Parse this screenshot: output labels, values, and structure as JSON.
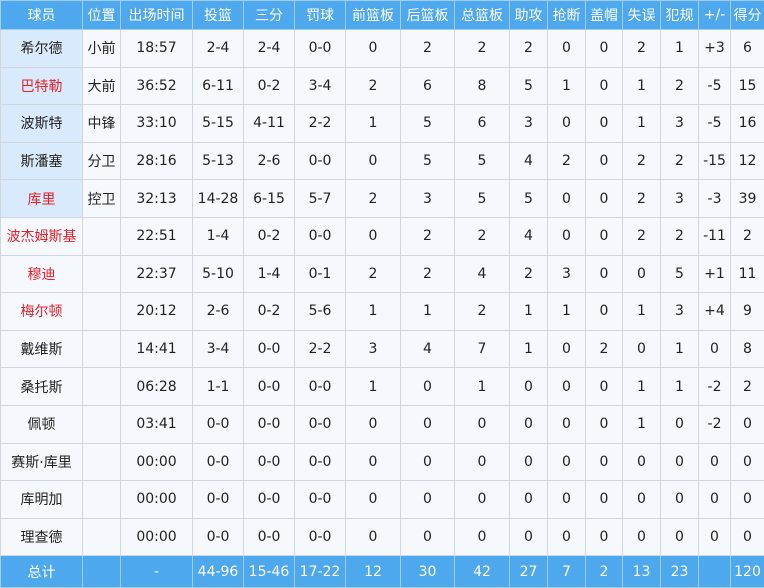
{
  "colors": {
    "header_bg": "#4ea8ee",
    "starter_bg": "#d8eafb",
    "highlight_name": "#e8202a"
  },
  "headers": [
    "球员",
    "位置",
    "出场时间",
    "投篮",
    "三分",
    "罚球",
    "前篮板",
    "后篮板",
    "总篮板",
    "助攻",
    "抢断",
    "盖帽",
    "失误",
    "犯规",
    "+/-",
    "得分"
  ],
  "players": [
    {
      "name": "希尔德",
      "starter": true,
      "red": false,
      "cells": [
        "小前",
        "18:57",
        "2-4",
        "2-4",
        "0-0",
        "0",
        "2",
        "2",
        "2",
        "0",
        "0",
        "2",
        "1",
        "+3",
        "6"
      ]
    },
    {
      "name": "巴特勒",
      "starter": true,
      "red": true,
      "cells": [
        "大前",
        "36:52",
        "6-11",
        "0-2",
        "3-4",
        "2",
        "6",
        "8",
        "5",
        "1",
        "0",
        "1",
        "2",
        "-5",
        "15"
      ]
    },
    {
      "name": "波斯特",
      "starter": true,
      "red": false,
      "cells": [
        "中锋",
        "33:10",
        "5-15",
        "4-11",
        "2-2",
        "1",
        "5",
        "6",
        "3",
        "0",
        "0",
        "1",
        "3",
        "-5",
        "16"
      ]
    },
    {
      "name": "斯潘塞",
      "starter": true,
      "red": false,
      "cells": [
        "分卫",
        "28:16",
        "5-13",
        "2-6",
        "0-0",
        "0",
        "5",
        "5",
        "4",
        "2",
        "0",
        "2",
        "2",
        "-15",
        "12"
      ]
    },
    {
      "name": "库里",
      "starter": true,
      "red": true,
      "cells": [
        "控卫",
        "32:13",
        "14-28",
        "6-15",
        "5-7",
        "2",
        "3",
        "5",
        "5",
        "0",
        "0",
        "2",
        "3",
        "-3",
        "39"
      ]
    },
    {
      "name": "波杰姆斯基",
      "starter": false,
      "red": true,
      "cells": [
        "",
        "22:51",
        "1-4",
        "0-2",
        "0-0",
        "0",
        "2",
        "2",
        "4",
        "0",
        "0",
        "2",
        "2",
        "-11",
        "2"
      ]
    },
    {
      "name": "穆迪",
      "starter": false,
      "red": true,
      "cells": [
        "",
        "22:37",
        "5-10",
        "1-4",
        "0-1",
        "2",
        "2",
        "4",
        "2",
        "3",
        "0",
        "0",
        "5",
        "+1",
        "11"
      ]
    },
    {
      "name": "梅尔顿",
      "starter": false,
      "red": true,
      "cells": [
        "",
        "20:12",
        "2-6",
        "0-2",
        "5-6",
        "1",
        "1",
        "2",
        "1",
        "1",
        "0",
        "1",
        "3",
        "+4",
        "9"
      ]
    },
    {
      "name": "戴维斯",
      "starter": false,
      "red": false,
      "cells": [
        "",
        "14:41",
        "3-4",
        "0-0",
        "2-2",
        "3",
        "4",
        "7",
        "1",
        "0",
        "2",
        "0",
        "1",
        "0",
        "8"
      ]
    },
    {
      "name": "桑托斯",
      "starter": false,
      "red": false,
      "cells": [
        "",
        "06:28",
        "1-1",
        "0-0",
        "0-0",
        "1",
        "0",
        "1",
        "0",
        "0",
        "0",
        "1",
        "1",
        "-2",
        "2"
      ]
    },
    {
      "name": "佩顿",
      "starter": false,
      "red": false,
      "cells": [
        "",
        "03:41",
        "0-0",
        "0-0",
        "0-0",
        "0",
        "0",
        "0",
        "0",
        "0",
        "0",
        "1",
        "0",
        "-2",
        "0"
      ]
    },
    {
      "name": "赛斯·库里",
      "starter": false,
      "red": false,
      "cells": [
        "",
        "00:00",
        "0-0",
        "0-0",
        "0-0",
        "0",
        "0",
        "0",
        "0",
        "0",
        "0",
        "0",
        "0",
        "0",
        "0"
      ]
    },
    {
      "name": "库明加",
      "starter": false,
      "red": false,
      "cells": [
        "",
        "00:00",
        "0-0",
        "0-0",
        "0-0",
        "0",
        "0",
        "0",
        "0",
        "0",
        "0",
        "0",
        "0",
        "0",
        "0"
      ]
    },
    {
      "name": "理查德",
      "starter": false,
      "red": false,
      "cells": [
        "",
        "00:00",
        "0-0",
        "0-0",
        "0-0",
        "0",
        "0",
        "0",
        "0",
        "0",
        "0",
        "0",
        "0",
        "0",
        "0"
      ]
    }
  ],
  "totals": [
    "总计",
    "",
    "-",
    "44-96",
    "15-46",
    "17-22",
    "12",
    "30",
    "42",
    "27",
    "7",
    "2",
    "13",
    "23",
    "",
    "120"
  ]
}
